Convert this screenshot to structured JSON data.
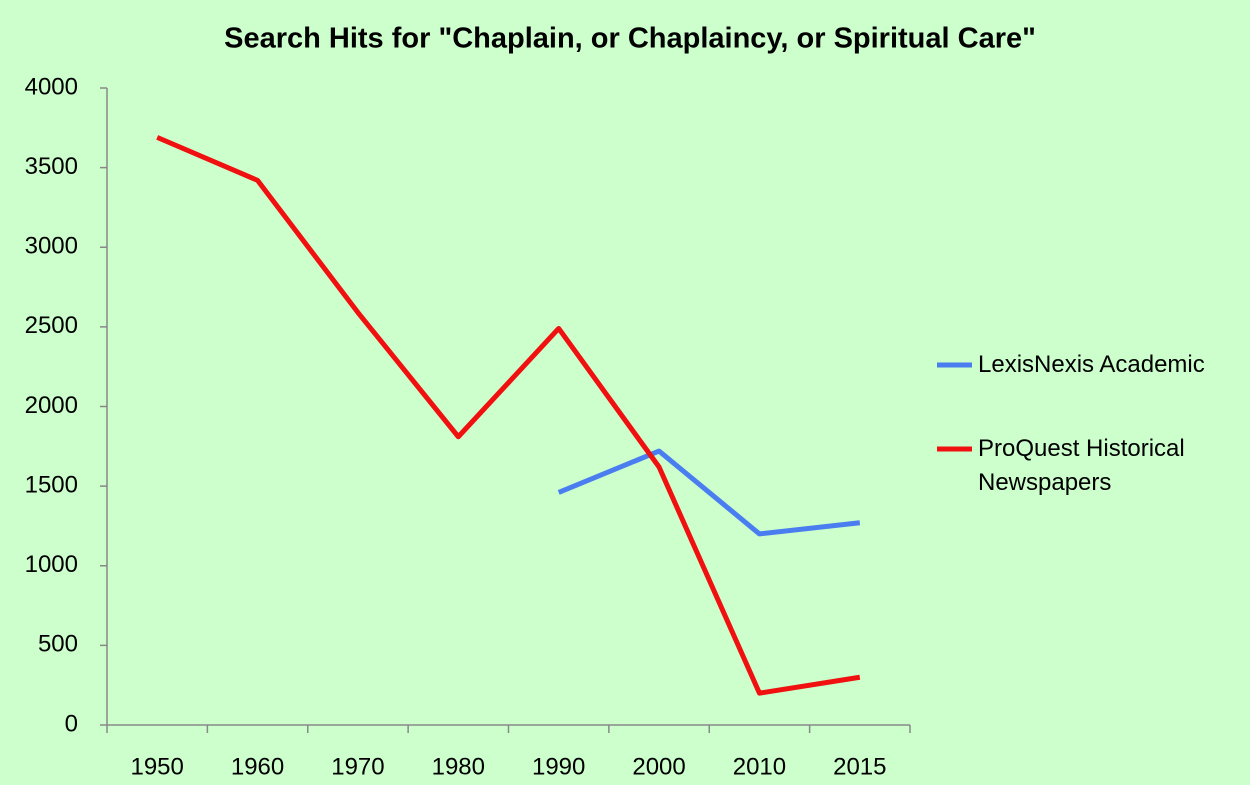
{
  "chart_data": {
    "type": "line",
    "title": "Search Hits for \"Chaplain, or Chaplaincy, or Spiritual Care\"",
    "categories": [
      "1950",
      "1960",
      "1970",
      "1980",
      "1990",
      "2000",
      "2010",
      "2015"
    ],
    "series": [
      {
        "name": "LexisNexis Academic",
        "color": "#4a7ef0",
        "values": [
          null,
          null,
          null,
          null,
          1460,
          1720,
          1200,
          1270
        ]
      },
      {
        "name": "ProQuest Historical Newspapers",
        "color": "#f01010",
        "values": [
          3690,
          3420,
          2590,
          1810,
          2490,
          1620,
          200,
          300
        ]
      }
    ],
    "ylim": [
      0,
      4000
    ],
    "yticks": [
      0,
      500,
      1000,
      1500,
      2000,
      2500,
      3000,
      3500,
      4000
    ],
    "grid": false,
    "legend": "right"
  }
}
